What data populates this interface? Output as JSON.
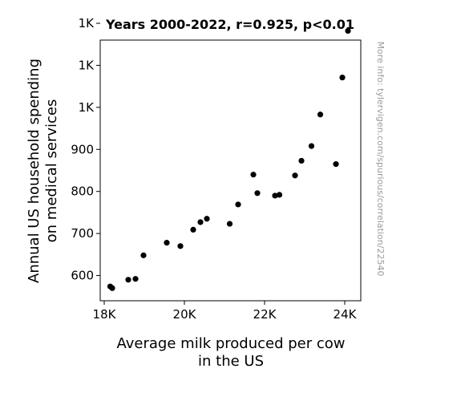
{
  "chart_data": {
    "type": "scatter",
    "title": "Years 2000-2022, r=0.925, p<0.01",
    "xlabel": [
      "Average milk produced per cow",
      "in the US"
    ],
    "ylabel": [
      "Annual US household spending",
      "on medical services"
    ],
    "watermark": "More info: tylervigen.com/spurious/correlation/22540",
    "xlim": [
      17900,
      24400
    ],
    "ylim": [
      540,
      1160
    ],
    "xticks": [
      {
        "value": 18000,
        "label": "18K"
      },
      {
        "value": 20000,
        "label": "20K"
      },
      {
        "value": 22000,
        "label": "22K"
      },
      {
        "value": 24000,
        "label": "24K"
      }
    ],
    "yticks": [
      {
        "value": 600,
        "label": "600"
      },
      {
        "value": 700,
        "label": "700"
      },
      {
        "value": 800,
        "label": "800"
      },
      {
        "value": 900,
        "label": "900"
      },
      {
        "value": 1000,
        "label": "1K"
      },
      {
        "value": 1100,
        "label": "1K"
      },
      {
        "value": 1200,
        "label": "1K"
      }
    ],
    "grid": false,
    "marker_color": "#000000",
    "points": [
      {
        "x": 18150,
        "y": 574
      },
      {
        "x": 18200,
        "y": 570
      },
      {
        "x": 18600,
        "y": 590
      },
      {
        "x": 18780,
        "y": 592
      },
      {
        "x": 18980,
        "y": 648
      },
      {
        "x": 19560,
        "y": 678
      },
      {
        "x": 19900,
        "y": 670
      },
      {
        "x": 20220,
        "y": 709
      },
      {
        "x": 20400,
        "y": 727
      },
      {
        "x": 20560,
        "y": 735
      },
      {
        "x": 21130,
        "y": 723
      },
      {
        "x": 21340,
        "y": 769
      },
      {
        "x": 21720,
        "y": 840
      },
      {
        "x": 21820,
        "y": 796
      },
      {
        "x": 22260,
        "y": 790
      },
      {
        "x": 22370,
        "y": 792
      },
      {
        "x": 22760,
        "y": 838
      },
      {
        "x": 22920,
        "y": 873
      },
      {
        "x": 23170,
        "y": 908
      },
      {
        "x": 23390,
        "y": 983
      },
      {
        "x": 23780,
        "y": 865
      },
      {
        "x": 23940,
        "y": 1071
      },
      {
        "x": 24080,
        "y": 1182
      }
    ]
  }
}
